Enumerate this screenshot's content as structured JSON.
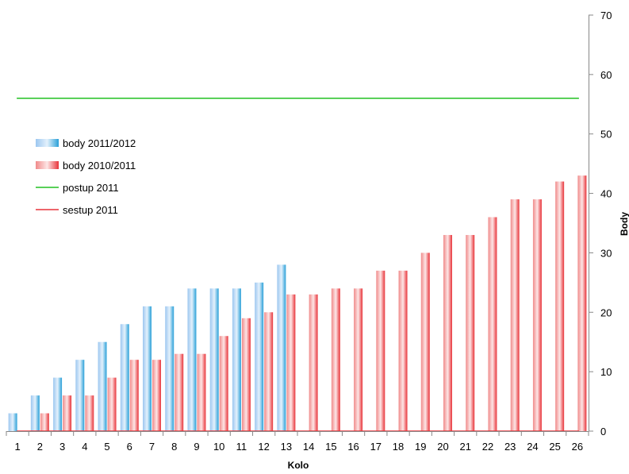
{
  "chart_data": {
    "type": "bar",
    "categories": [
      "1",
      "2",
      "3",
      "4",
      "5",
      "6",
      "7",
      "8",
      "9",
      "10",
      "11",
      "12",
      "13",
      "14",
      "15",
      "16",
      "17",
      "18",
      "19",
      "20",
      "21",
      "22",
      "23",
      "24",
      "25",
      "26"
    ],
    "series": [
      {
        "name": "body 2011/2012",
        "kind": "bar",
        "color": "#4aa3df",
        "values": [
          3,
          6,
          9,
          12,
          15,
          18,
          21,
          21,
          24,
          24,
          24,
          25,
          28,
          null,
          null,
          null,
          null,
          null,
          null,
          null,
          null,
          null,
          null,
          null,
          null,
          null
        ]
      },
      {
        "name": "body 2010/2011",
        "kind": "bar",
        "color": "#e8343a",
        "values": [
          0,
          3,
          6,
          6,
          9,
          12,
          12,
          13,
          13,
          16,
          19,
          20,
          23,
          23,
          24,
          24,
          27,
          27,
          30,
          33,
          33,
          36,
          39,
          39,
          42,
          43
        ]
      },
      {
        "name": "postup 2011",
        "kind": "line",
        "color": "#22c022",
        "value": 56
      },
      {
        "name": "sestup 2011",
        "kind": "line",
        "color": "#e8343a",
        "value": 0
      }
    ],
    "xlabel": "Kolo",
    "ylabel": "Body",
    "ylim": [
      0,
      70
    ],
    "yticks": [
      0,
      10,
      20,
      30,
      40,
      50,
      60,
      70
    ],
    "y_axis_side": "right",
    "grid": false,
    "legend_position": "left"
  }
}
